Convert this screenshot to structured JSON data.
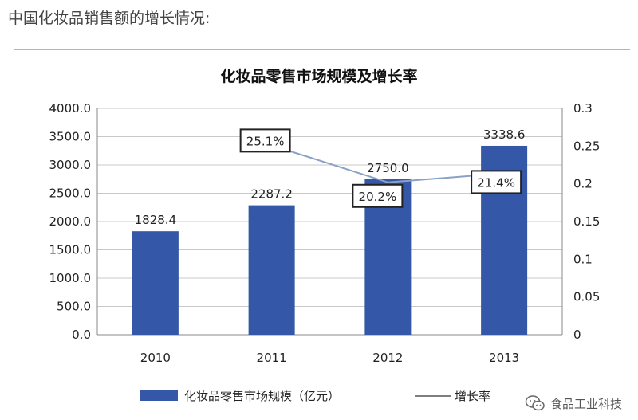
{
  "header": {
    "text": "中国化妆品销售额的增长情况:"
  },
  "watermark": {
    "text": "食品工业科技",
    "icon": "wechat-icon"
  },
  "colors": {
    "bar": "#3557a7",
    "line": "#8aa0c8",
    "axis_text": "#222222",
    "grid": "#c8c8c8",
    "label_box_border": "#222222"
  },
  "chart_data": {
    "type": "bar",
    "title": "化妆品零售市场规模及增长率",
    "categories": [
      "2010",
      "2011",
      "2012",
      "2013"
    ],
    "series": [
      {
        "name": "化妆品零售市场规模（亿元）",
        "type": "bar",
        "axis": "left",
        "values": [
          1828.4,
          2287.2,
          2750.0,
          3338.6
        ],
        "labels": [
          "1828.4",
          "2287.2",
          "2750.0",
          "3338.6"
        ]
      },
      {
        "name": "增长率",
        "type": "line",
        "axis": "right",
        "values": [
          null,
          0.251,
          0.202,
          0.214
        ],
        "labels": [
          "",
          "25.1%",
          "20.2%",
          "21.4%"
        ]
      }
    ],
    "y_left": {
      "min": 0,
      "max": 4000,
      "ticks": [
        0,
        500,
        1000,
        1500,
        2000,
        2500,
        3000,
        3500,
        4000
      ],
      "tick_labels": [
        "0.0",
        "500.0",
        "1000.0",
        "1500.0",
        "2000.0",
        "2500.0",
        "3000.0",
        "3500.0",
        "4000.0"
      ]
    },
    "y_right": {
      "min": 0,
      "max": 0.3,
      "ticks": [
        0,
        0.05,
        0.1,
        0.15,
        0.2,
        0.25,
        0.3
      ],
      "tick_labels": [
        "0",
        "0.05",
        "0.1",
        "0.15",
        "0.2",
        "0.25",
        "0.3"
      ]
    },
    "grid": true,
    "legend_position": "bottom"
  }
}
